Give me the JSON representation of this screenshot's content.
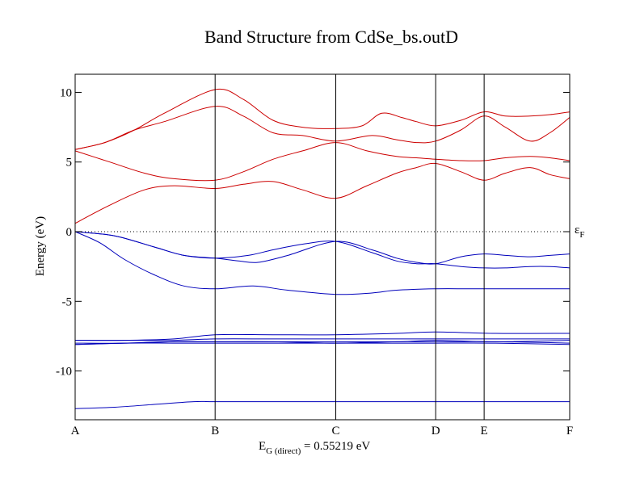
{
  "chart_data": {
    "type": "line",
    "title": "Band Structure from CdSe_bs.outD",
    "ylabel": "Energy (eV)",
    "ylim": [
      -13.5,
      11.3
    ],
    "yticks": [
      10,
      5,
      0,
      -5,
      -10
    ],
    "xlim": [
      0,
      1
    ],
    "kpoints": [
      {
        "label": "A",
        "x": 0.0
      },
      {
        "label": "B",
        "x": 0.283
      },
      {
        "label": "C",
        "x": 0.527
      },
      {
        "label": "D",
        "x": 0.729
      },
      {
        "label": "E",
        "x": 0.827
      },
      {
        "label": "F",
        "x": 1.0
      }
    ],
    "fermi": {
      "value": 0,
      "label": "ε",
      "sub": "F"
    },
    "gap_label": {
      "main": "E",
      "sub": "G (direct)",
      "rest": " = 0.55219 eV"
    },
    "conduction_color": "#cc0000",
    "valence_color": "#0000bb",
    "conduction_bands": [
      {
        "x": [
          0,
          0.07,
          0.14,
          0.2,
          0.283,
          0.34,
          0.4,
          0.46,
          0.527,
          0.59,
          0.65,
          0.69,
          0.729,
          0.78,
          0.827,
          0.87,
          0.92,
          0.96,
          1.0
        ],
        "y": [
          0.6,
          1.9,
          3.0,
          3.3,
          3.1,
          3.4,
          3.6,
          3.0,
          2.4,
          3.3,
          4.2,
          4.6,
          4.9,
          4.3,
          3.7,
          4.2,
          4.6,
          4.1,
          3.8
        ]
      },
      {
        "x": [
          0,
          0.07,
          0.14,
          0.2,
          0.283,
          0.34,
          0.4,
          0.46,
          0.527,
          0.59,
          0.65,
          0.69,
          0.729,
          0.78,
          0.827,
          0.87,
          0.92,
          0.96,
          1.0
        ],
        "y": [
          5.8,
          5.0,
          4.2,
          3.8,
          3.7,
          4.3,
          5.2,
          5.8,
          6.4,
          5.8,
          5.4,
          5.3,
          5.2,
          5.1,
          5.1,
          5.3,
          5.4,
          5.3,
          5.1
        ]
      },
      {
        "x": [
          0,
          0.06,
          0.12,
          0.18,
          0.283,
          0.34,
          0.4,
          0.46,
          0.527,
          0.6,
          0.65,
          0.69,
          0.729,
          0.78,
          0.827,
          0.87,
          0.92,
          0.96,
          1.0
        ],
        "y": [
          5.9,
          6.4,
          7.3,
          7.9,
          9.0,
          8.3,
          7.1,
          6.9,
          6.5,
          6.9,
          6.6,
          6.4,
          6.5,
          7.3,
          8.3,
          7.5,
          6.5,
          7.1,
          8.2
        ]
      },
      {
        "x": [
          0,
          0.06,
          0.12,
          0.18,
          0.283,
          0.34,
          0.4,
          0.46,
          0.527,
          0.58,
          0.62,
          0.66,
          0.69,
          0.729,
          0.78,
          0.827,
          0.87,
          0.92,
          0.96,
          1.0
        ],
        "y": [
          5.9,
          6.4,
          7.3,
          8.5,
          10.2,
          9.5,
          8.0,
          7.5,
          7.4,
          7.6,
          8.5,
          8.2,
          7.9,
          7.6,
          8.0,
          8.6,
          8.3,
          8.3,
          8.4,
          8.6
        ]
      }
    ],
    "valence_bands": [
      {
        "x": [
          0,
          0.08,
          0.16,
          0.22,
          0.283,
          0.35,
          0.4,
          0.46,
          0.527,
          0.6,
          0.65,
          0.69,
          0.729,
          0.78,
          0.827,
          0.87,
          0.92,
          0.96,
          1.0
        ],
        "y": [
          0,
          -0.3,
          -1.1,
          -1.7,
          -1.9,
          -1.7,
          -1.3,
          -0.9,
          -0.7,
          -1.5,
          -2.1,
          -2.3,
          -2.3,
          -2.5,
          -2.6,
          -2.6,
          -2.5,
          -2.5,
          -2.6
        ]
      },
      {
        "x": [
          0,
          0.08,
          0.16,
          0.22,
          0.283,
          0.33,
          0.37,
          0.43,
          0.527,
          0.6,
          0.65,
          0.69,
          0.729,
          0.78,
          0.827,
          0.87,
          0.92,
          0.96,
          1.0
        ],
        "y": [
          0,
          -0.3,
          -1.1,
          -1.7,
          -1.9,
          -2.1,
          -2.2,
          -1.7,
          -0.7,
          -1.3,
          -1.9,
          -2.2,
          -2.3,
          -1.8,
          -1.6,
          -1.7,
          -1.8,
          -1.7,
          -1.6
        ]
      },
      {
        "x": [
          0,
          0.05,
          0.1,
          0.16,
          0.22,
          0.283,
          0.36,
          0.43,
          0.527,
          0.6,
          0.65,
          0.729,
          0.8,
          0.9,
          1.0
        ],
        "y": [
          0,
          -0.8,
          -2.0,
          -3.1,
          -3.9,
          -4.1,
          -3.9,
          -4.2,
          -4.5,
          -4.4,
          -4.2,
          -4.1,
          -4.1,
          -4.1,
          -4.1
        ]
      },
      {
        "x": [
          0,
          0.1,
          0.2,
          0.283,
          0.4,
          0.527,
          0.65,
          0.729,
          0.85,
          1.0
        ],
        "y": [
          -7.8,
          -7.8,
          -7.7,
          -7.4,
          -7.4,
          -7.4,
          -7.3,
          -7.2,
          -7.3,
          -7.3
        ]
      },
      {
        "x": [
          0,
          0.1,
          0.2,
          0.283,
          0.4,
          0.527,
          0.65,
          0.729,
          0.85,
          1.0
        ],
        "y": [
          -7.8,
          -7.8,
          -7.8,
          -7.7,
          -7.7,
          -7.7,
          -7.7,
          -7.7,
          -7.7,
          -7.7
        ]
      },
      {
        "x": [
          0,
          0.1,
          0.2,
          0.283,
          0.4,
          0.527,
          0.65,
          0.729,
          0.85,
          1.0
        ],
        "y": [
          -8.0,
          -8.0,
          -7.9,
          -7.9,
          -7.9,
          -7.9,
          -7.9,
          -7.8,
          -7.9,
          -7.8
        ]
      },
      {
        "x": [
          0,
          0.1,
          0.2,
          0.283,
          0.4,
          0.527,
          0.65,
          0.729,
          0.85,
          1.0
        ],
        "y": [
          -8.1,
          -8.0,
          -7.9,
          -7.9,
          -7.9,
          -8.0,
          -7.9,
          -7.9,
          -7.9,
          -8.0
        ]
      },
      {
        "x": [
          0,
          0.1,
          0.2,
          0.283,
          0.4,
          0.527,
          0.65,
          0.729,
          0.85,
          1.0
        ],
        "y": [
          -8.1,
          -8.0,
          -8.0,
          -8.0,
          -8.0,
          -8.0,
          -8.0,
          -8.0,
          -8.0,
          -8.1
        ]
      },
      {
        "x": [
          0,
          0.08,
          0.16,
          0.24,
          0.283,
          0.4,
          0.527,
          0.65,
          0.729,
          0.85,
          1.0
        ],
        "y": [
          -12.7,
          -12.6,
          -12.4,
          -12.2,
          -12.2,
          -12.2,
          -12.2,
          -12.2,
          -12.2,
          -12.2,
          -12.2
        ]
      }
    ]
  }
}
